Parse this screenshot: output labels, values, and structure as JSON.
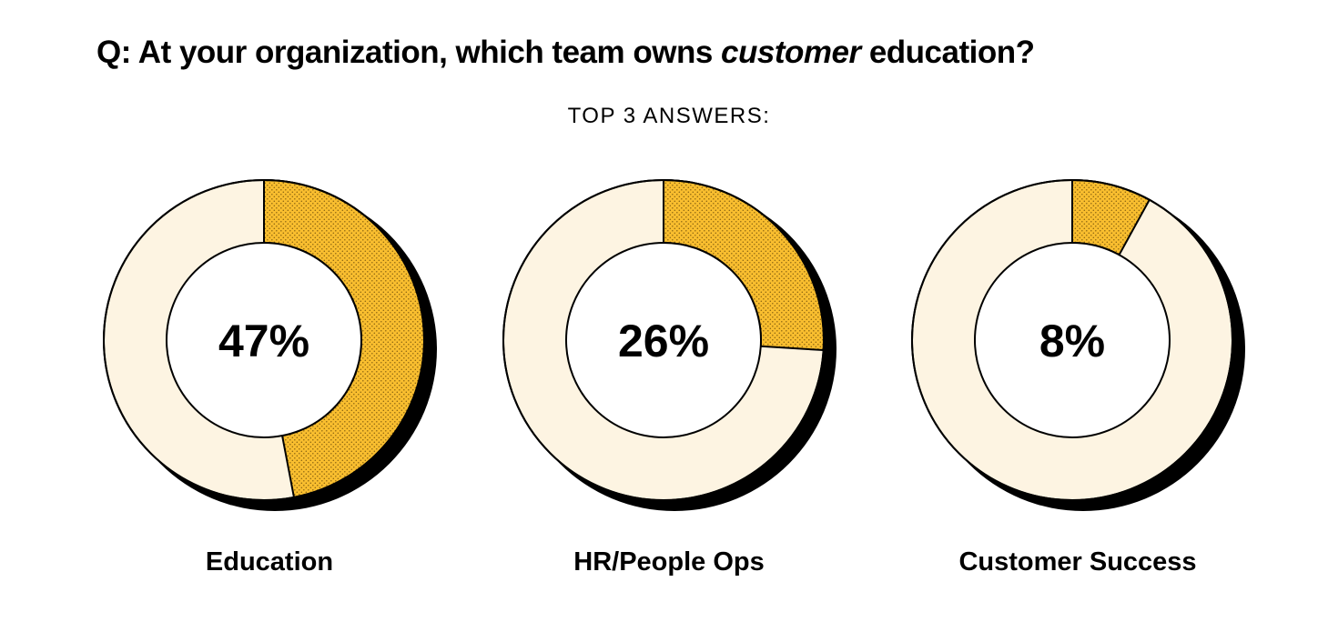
{
  "header": {
    "title_before": "Q: At your organization, which team owns ",
    "title_emphasis": "customer",
    "title_after": " education?",
    "subtitle": "TOP 3 ANSWERS:"
  },
  "colors": {
    "highlight": "#F9BE2F",
    "remainder": "#FDF4E2",
    "hole": "#FFFFFF",
    "outline": "#000000",
    "shadow": "#000000",
    "dots": "#8A6410"
  },
  "chart_data": [
    {
      "type": "pie",
      "style": "donut",
      "category": "Education",
      "value": 47,
      "label": "47%"
    },
    {
      "type": "pie",
      "style": "donut",
      "category": "HR/People Ops",
      "value": 26,
      "label": "26%"
    },
    {
      "type": "pie",
      "style": "donut",
      "category": "Customer Success",
      "value": 8,
      "label": "8%"
    }
  ]
}
